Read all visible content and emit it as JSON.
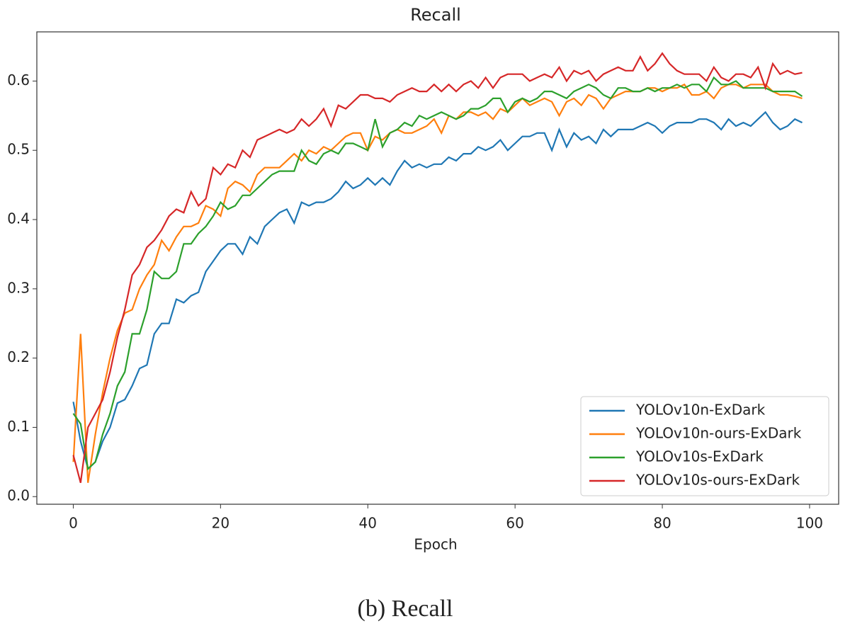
{
  "chart_data": {
    "type": "line",
    "title": "Recall",
    "x_label": "Epoch",
    "caption": "(b) Recall",
    "x": [
      0,
      1,
      2,
      3,
      4,
      5,
      6,
      7,
      8,
      9,
      10,
      11,
      12,
      13,
      14,
      15,
      16,
      17,
      18,
      19,
      20,
      21,
      22,
      23,
      24,
      25,
      26,
      27,
      28,
      29,
      30,
      31,
      32,
      33,
      34,
      35,
      36,
      37,
      38,
      39,
      40,
      41,
      42,
      43,
      44,
      45,
      46,
      47,
      48,
      49,
      50,
      51,
      52,
      53,
      54,
      55,
      56,
      57,
      58,
      59,
      60,
      61,
      62,
      63,
      64,
      65,
      66,
      67,
      68,
      69,
      70,
      71,
      72,
      73,
      74,
      75,
      76,
      77,
      78,
      79,
      80,
      81,
      82,
      83,
      84,
      85,
      86,
      87,
      88,
      89,
      90,
      91,
      92,
      93,
      94,
      95,
      96,
      97,
      98,
      99
    ],
    "series": [
      {
        "name": "YOLOv10n-ExDark",
        "color": "#1f77b4",
        "values": [
          0.137,
          0.08,
          0.04,
          0.05,
          0.08,
          0.1,
          0.135,
          0.14,
          0.16,
          0.185,
          0.19,
          0.235,
          0.25,
          0.25,
          0.285,
          0.28,
          0.29,
          0.295,
          0.325,
          0.34,
          0.355,
          0.365,
          0.365,
          0.35,
          0.375,
          0.365,
          0.39,
          0.4,
          0.41,
          0.415,
          0.395,
          0.425,
          0.42,
          0.425,
          0.425,
          0.43,
          0.44,
          0.455,
          0.445,
          0.45,
          0.46,
          0.45,
          0.46,
          0.45,
          0.47,
          0.485,
          0.475,
          0.48,
          0.475,
          0.48,
          0.48,
          0.49,
          0.485,
          0.495,
          0.495,
          0.505,
          0.5,
          0.505,
          0.515,
          0.5,
          0.51,
          0.52,
          0.52,
          0.525,
          0.525,
          0.5,
          0.53,
          0.505,
          0.525,
          0.515,
          0.52,
          0.51,
          0.53,
          0.52,
          0.53,
          0.53,
          0.53,
          0.535,
          0.54,
          0.535,
          0.525,
          0.535,
          0.54,
          0.54,
          0.54,
          0.545,
          0.545,
          0.54,
          0.53,
          0.545,
          0.535,
          0.54,
          0.535,
          0.545,
          0.555,
          0.54,
          0.53,
          0.535,
          0.545,
          0.54
        ]
      },
      {
        "name": "YOLOv10n-ours-ExDark",
        "color": "#ff7f0e",
        "values": [
          0.05,
          0.235,
          0.02,
          0.09,
          0.15,
          0.2,
          0.24,
          0.265,
          0.27,
          0.3,
          0.32,
          0.335,
          0.37,
          0.355,
          0.375,
          0.39,
          0.39,
          0.395,
          0.42,
          0.415,
          0.405,
          0.445,
          0.455,
          0.45,
          0.44,
          0.465,
          0.475,
          0.475,
          0.475,
          0.485,
          0.495,
          0.485,
          0.5,
          0.495,
          0.505,
          0.5,
          0.51,
          0.52,
          0.525,
          0.525,
          0.5,
          0.52,
          0.515,
          0.525,
          0.53,
          0.525,
          0.525,
          0.53,
          0.535,
          0.545,
          0.525,
          0.55,
          0.545,
          0.555,
          0.555,
          0.55,
          0.555,
          0.545,
          0.56,
          0.555,
          0.565,
          0.575,
          0.565,
          0.57,
          0.575,
          0.57,
          0.55,
          0.57,
          0.575,
          0.565,
          0.58,
          0.575,
          0.56,
          0.575,
          0.58,
          0.585,
          0.585,
          0.585,
          0.59,
          0.59,
          0.585,
          0.59,
          0.59,
          0.595,
          0.58,
          0.58,
          0.585,
          0.575,
          0.59,
          0.595,
          0.595,
          0.59,
          0.595,
          0.595,
          0.595,
          0.585,
          0.58,
          0.58,
          0.578,
          0.575
        ]
      },
      {
        "name": "YOLOv10s-ExDark",
        "color": "#2ca02c",
        "values": [
          0.12,
          0.105,
          0.04,
          0.05,
          0.09,
          0.12,
          0.16,
          0.18,
          0.235,
          0.235,
          0.27,
          0.325,
          0.315,
          0.315,
          0.325,
          0.365,
          0.365,
          0.38,
          0.39,
          0.405,
          0.425,
          0.415,
          0.42,
          0.435,
          0.435,
          0.445,
          0.455,
          0.465,
          0.47,
          0.47,
          0.47,
          0.5,
          0.485,
          0.48,
          0.495,
          0.5,
          0.495,
          0.51,
          0.51,
          0.505,
          0.5,
          0.545,
          0.505,
          0.525,
          0.53,
          0.54,
          0.535,
          0.55,
          0.545,
          0.55,
          0.555,
          0.55,
          0.545,
          0.55,
          0.56,
          0.56,
          0.565,
          0.575,
          0.575,
          0.555,
          0.57,
          0.575,
          0.57,
          0.575,
          0.585,
          0.585,
          0.58,
          0.575,
          0.585,
          0.59,
          0.595,
          0.59,
          0.58,
          0.575,
          0.59,
          0.59,
          0.585,
          0.585,
          0.59,
          0.585,
          0.59,
          0.59,
          0.595,
          0.59,
          0.595,
          0.595,
          0.585,
          0.605,
          0.595,
          0.595,
          0.6,
          0.59,
          0.59,
          0.59,
          0.59,
          0.585,
          0.585,
          0.585,
          0.585,
          0.578
        ]
      },
      {
        "name": "YOLOv10s-ours-ExDark",
        "color": "#d62728",
        "values": [
          0.06,
          0.02,
          0.1,
          0.12,
          0.14,
          0.18,
          0.23,
          0.27,
          0.32,
          0.335,
          0.36,
          0.37,
          0.385,
          0.405,
          0.415,
          0.41,
          0.44,
          0.42,
          0.43,
          0.475,
          0.465,
          0.48,
          0.475,
          0.5,
          0.49,
          0.515,
          0.52,
          0.525,
          0.53,
          0.525,
          0.53,
          0.545,
          0.535,
          0.545,
          0.56,
          0.535,
          0.565,
          0.56,
          0.57,
          0.58,
          0.58,
          0.575,
          0.575,
          0.57,
          0.58,
          0.585,
          0.59,
          0.585,
          0.585,
          0.595,
          0.585,
          0.595,
          0.585,
          0.595,
          0.6,
          0.59,
          0.605,
          0.59,
          0.605,
          0.61,
          0.61,
          0.61,
          0.6,
          0.605,
          0.61,
          0.605,
          0.62,
          0.6,
          0.615,
          0.61,
          0.615,
          0.6,
          0.61,
          0.615,
          0.62,
          0.615,
          0.615,
          0.635,
          0.615,
          0.625,
          0.64,
          0.625,
          0.615,
          0.61,
          0.61,
          0.61,
          0.6,
          0.62,
          0.605,
          0.6,
          0.61,
          0.61,
          0.605,
          0.62,
          0.59,
          0.625,
          0.61,
          0.615,
          0.61,
          0.612
        ]
      }
    ],
    "xlim": [
      -4.95,
      103.95
    ],
    "ylim": [
      -0.011,
      0.671
    ],
    "xticks": [
      0,
      20,
      40,
      60,
      80,
      100
    ],
    "yticks": [
      {
        "value": 0,
        "label": "0.0"
      },
      0.1,
      0.2,
      0.3,
      0.4,
      0.5,
      0.6
    ],
    "legend": "lower right"
  }
}
